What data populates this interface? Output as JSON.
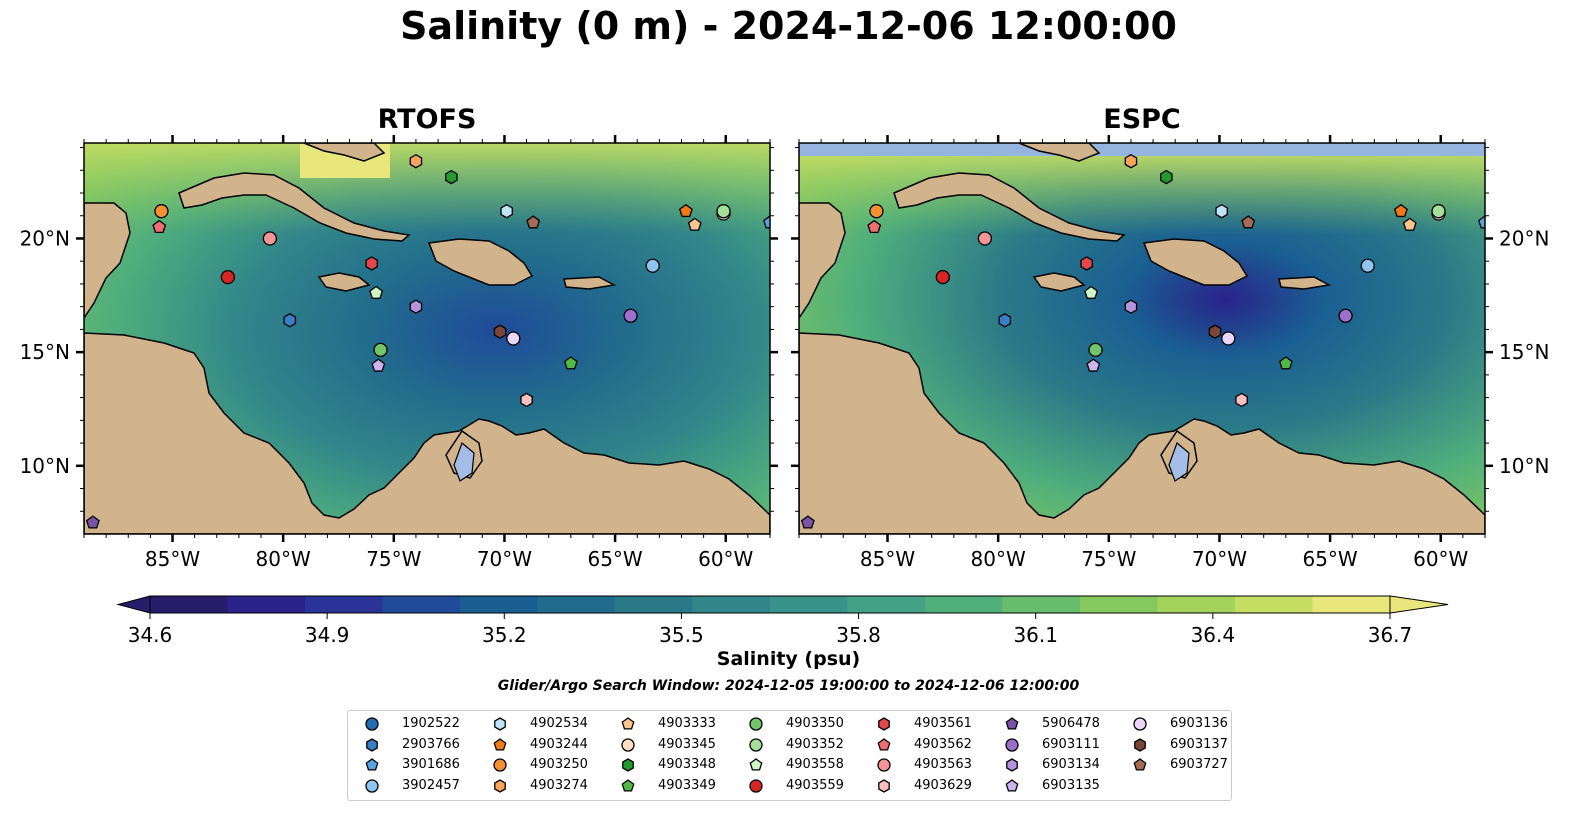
{
  "title": "Salinity (0 m) - 2024-12-06 12:00:00",
  "panels": [
    {
      "title": "RTOFS"
    },
    {
      "title": "ESPC"
    }
  ],
  "map_extent": {
    "lon": [
      -89,
      -58
    ],
    "lat": [
      7,
      24.2
    ]
  },
  "longitude_ticks": [
    "85°W",
    "80°W",
    "75°W",
    "70°W",
    "65°W",
    "60°W"
  ],
  "latitude_ticks": [
    "20°N",
    "15°N",
    "10°N"
  ],
  "colorbar": {
    "label": "Salinity (psu)",
    "range": [
      34.6,
      36.7
    ],
    "ticks": [
      "34.6",
      "34.9",
      "35.2",
      "35.5",
      "35.8",
      "36.1",
      "36.4",
      "36.7"
    ],
    "colors": [
      "#281d6a",
      "#29238a",
      "#2a3398",
      "#1f4b9a",
      "#1a5f92",
      "#216c8c",
      "#2a7988",
      "#32868a",
      "#38938a",
      "#43a186",
      "#51af7c",
      "#67bd6c",
      "#84c95d",
      "#a4d35c",
      "#c6dd63",
      "#e9e77c"
    ],
    "extend": "both"
  },
  "search_window": "Glider/Argo Search Window: 2024-12-05 19:00:00 to 2024-12-06 12:00:00",
  "colors": {
    "land": "#d2b48c",
    "deep_ocean": "#261b66",
    "lake": "#a4bde6",
    "espc_mask": "#96b4e0"
  },
  "platforms": [
    {
      "id": "1902522",
      "marker": "circle",
      "color": "#1f6fb2",
      "lon": null,
      "lat": null
    },
    {
      "id": "2903766",
      "marker": "hexagon",
      "color": "#3a7ec8",
      "lon": -79.7,
      "lat": 16.4
    },
    {
      "id": "3901686",
      "marker": "pentagon",
      "color": "#5ba3e0",
      "lon": -58.0,
      "lat": 20.7
    },
    {
      "id": "3902457",
      "marker": "circle",
      "color": "#90c5ef",
      "lon": -63.3,
      "lat": 18.8
    },
    {
      "id": "4902534",
      "marker": "hexagon",
      "color": "#bfe3f7",
      "lon": -69.9,
      "lat": 21.2
    },
    {
      "id": "4903244",
      "marker": "pentagon",
      "color": "#f07a17",
      "lon": -61.8,
      "lat": 21.2
    },
    {
      "id": "4903250",
      "marker": "circle",
      "color": "#f58f30",
      "lon": -85.5,
      "lat": 21.2
    },
    {
      "id": "4903274",
      "marker": "hexagon",
      "color": "#f9a45a",
      "lon": -74.0,
      "lat": 23.4
    },
    {
      "id": "4903333",
      "marker": "pentagon",
      "color": "#fbc58d",
      "lon": -61.4,
      "lat": 20.6
    },
    {
      "id": "4903345",
      "marker": "circle",
      "color": "#fde0c2",
      "lon": -60.1,
      "lat": 21.1
    },
    {
      "id": "4903348",
      "marker": "hexagon",
      "color": "#249a2e",
      "lon": -72.4,
      "lat": 22.7
    },
    {
      "id": "4903349",
      "marker": "pentagon",
      "color": "#52b848",
      "lon": -67.0,
      "lat": 14.5
    },
    {
      "id": "4903350",
      "marker": "circle",
      "color": "#72c669",
      "lon": -75.6,
      "lat": 15.1
    },
    {
      "id": "4903352",
      "marker": "circle",
      "color": "#a6df9a",
      "lon": -60.1,
      "lat": 21.2
    },
    {
      "id": "4903558",
      "marker": "pentagon",
      "color": "#cff6c4",
      "lon": -75.8,
      "lat": 17.6
    },
    {
      "id": "4903559",
      "marker": "circle",
      "color": "#d92424",
      "lon": -82.5,
      "lat": 18.3
    },
    {
      "id": "4903561",
      "marker": "hexagon",
      "color": "#e4474c",
      "lon": -76.0,
      "lat": 18.9
    },
    {
      "id": "4903562",
      "marker": "pentagon",
      "color": "#ee6f72",
      "lon": -85.6,
      "lat": 20.5
    },
    {
      "id": "4903563",
      "marker": "circle",
      "color": "#f49696",
      "lon": -80.6,
      "lat": 20.0
    },
    {
      "id": "4903629",
      "marker": "hexagon",
      "color": "#fac0c0",
      "lon": -69.0,
      "lat": 12.9
    },
    {
      "id": "5906478",
      "marker": "pentagon",
      "color": "#7b52a6",
      "lon": -88.6,
      "lat": 7.5
    },
    {
      "id": "6903111",
      "marker": "circle",
      "color": "#9c6fcb",
      "lon": -64.3,
      "lat": 16.6
    },
    {
      "id": "6903134",
      "marker": "hexagon",
      "color": "#b594dd",
      "lon": -74.0,
      "lat": 17.0
    },
    {
      "id": "6903135",
      "marker": "pentagon",
      "color": "#cdb4ec",
      "lon": -75.7,
      "lat": 14.4
    },
    {
      "id": "6903136",
      "marker": "circle",
      "color": "#ead6f7",
      "lon": -69.6,
      "lat": 15.6
    },
    {
      "id": "6903137",
      "marker": "hexagon",
      "color": "#7a4635",
      "lon": -70.2,
      "lat": 15.9
    },
    {
      "id": "6903727",
      "marker": "pentagon",
      "color": "#a66b56",
      "lon": -68.7,
      "lat": 20.7
    }
  ]
}
